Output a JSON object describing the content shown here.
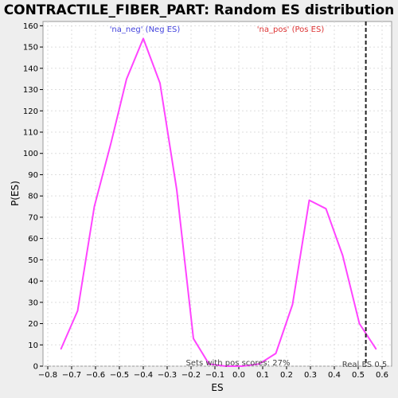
{
  "chart_data": {
    "type": "line",
    "title": "CONTRACTILE_FIBER_PART: Random ES distribution",
    "xlabel": "ES",
    "ylabel": "P(ES)",
    "xlim": [
      -0.82,
      0.64
    ],
    "ylim": [
      0,
      162
    ],
    "x_ticks": [
      -0.8,
      -0.7,
      -0.6,
      -0.5,
      -0.4,
      -0.3,
      -0.2,
      -0.1,
      0.0,
      0.1,
      0.2,
      0.3,
      0.4,
      0.5,
      0.6
    ],
    "x_tick_labels": [
      "−0.8",
      "−0.7",
      "−0.6",
      "−0.5",
      "−0.4",
      "−0.3",
      "−0.2",
      "−0.1",
      "0.0",
      "0.1",
      "0.2",
      "0.3",
      "0.4",
      "0.5",
      "0.6"
    ],
    "y_ticks": [
      0,
      10,
      20,
      30,
      40,
      50,
      60,
      70,
      80,
      90,
      100,
      110,
      120,
      130,
      140,
      150,
      160
    ],
    "grid": true,
    "series": [
      {
        "color": "#ff44ff",
        "x": [
          -0.745,
          -0.675,
          -0.605,
          -0.535,
          -0.47,
          -0.4,
          -0.33,
          -0.26,
          -0.19,
          -0.125,
          -0.055,
          0.015,
          0.085,
          0.155,
          0.225,
          0.295,
          0.365,
          0.435,
          0.505,
          0.575
        ],
        "y": [
          8,
          26,
          75,
          105,
          135,
          154,
          133,
          83,
          13,
          1,
          0,
          0,
          1,
          6,
          29,
          78,
          74,
          52,
          20,
          8
        ]
      }
    ],
    "real_es": 0.532,
    "annotations": {
      "neg_label": "'na_neg' (Neg ES)",
      "pos_label": "'na_pos' (Pos ES)",
      "sets_text": "Sets with pos scores: 27%",
      "real_es_label": "Real ES 0.5"
    },
    "colors": {
      "neg_label": "#4444dd",
      "pos_label": "#dd3333",
      "annotation_gray": "#444444",
      "plot_background": "#ffffff",
      "grid": "#dddddd"
    }
  }
}
